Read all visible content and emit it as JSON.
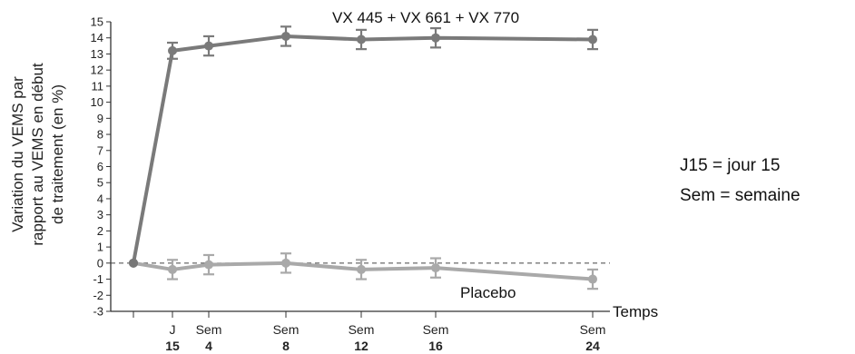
{
  "chart_data": {
    "type": "line",
    "x": [
      "0",
      "J 15",
      "Sem 4",
      "Sem 8",
      "Sem 12",
      "Sem 16",
      "Sem 24"
    ],
    "xtick_labels": [
      {
        "line1": "J",
        "line2": "15"
      },
      {
        "line1": "Sem",
        "line2": "4"
      },
      {
        "line1": "Sem",
        "line2": "8"
      },
      {
        "line1": "Sem",
        "line2": "12"
      },
      {
        "line1": "Sem",
        "line2": "16"
      },
      {
        "line1": "Sem",
        "line2": "24"
      }
    ],
    "xlabel": "Temps",
    "ylabel_lines": [
      "Variation du VEMS par",
      "rapport au VEMS en début",
      "de traitement (en %)"
    ],
    "ylim": [
      -3,
      15
    ],
    "yticks": [
      -3,
      -2,
      -1,
      0,
      1,
      2,
      3,
      4,
      5,
      6,
      7,
      8,
      9,
      10,
      11,
      12,
      13,
      14,
      15
    ],
    "reference_line": {
      "y": 0,
      "style": "dashed"
    },
    "series": [
      {
        "name": "VX 445 + VX 661 + VX 770",
        "color": "#7a7a7a",
        "values": [
          0,
          13.2,
          13.5,
          14.1,
          13.9,
          14.0,
          13.9
        ],
        "error": [
          0,
          0.5,
          0.6,
          0.6,
          0.6,
          0.6,
          0.6
        ]
      },
      {
        "name": "Placebo",
        "color": "#a9a9a9",
        "values": [
          0,
          -0.4,
          -0.1,
          0.0,
          -0.4,
          -0.3,
          -1.0
        ],
        "error": [
          0,
          0.6,
          0.6,
          0.6,
          0.6,
          0.6,
          0.6
        ]
      }
    ]
  },
  "notes": [
    "J15 = jour 15",
    "Sem = semaine"
  ]
}
